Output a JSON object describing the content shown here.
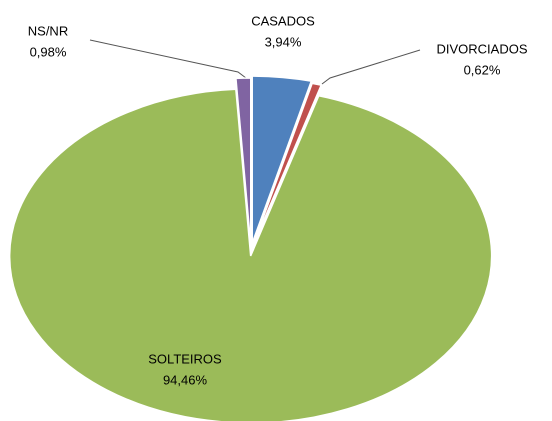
{
  "chart_data": {
    "type": "pie",
    "categories": [
      "CASADOS",
      "DIVORCIADOS",
      "SOLTEIROS",
      "NS/NR"
    ],
    "values": [
      3.94,
      0.62,
      94.46,
      0.98
    ],
    "value_labels": [
      "3,94%",
      "0,62%",
      "94,46%",
      "0,98%"
    ],
    "colors": [
      "#4f81bd",
      "#c0504d",
      "#9bbb59",
      "#8064a2"
    ]
  }
}
